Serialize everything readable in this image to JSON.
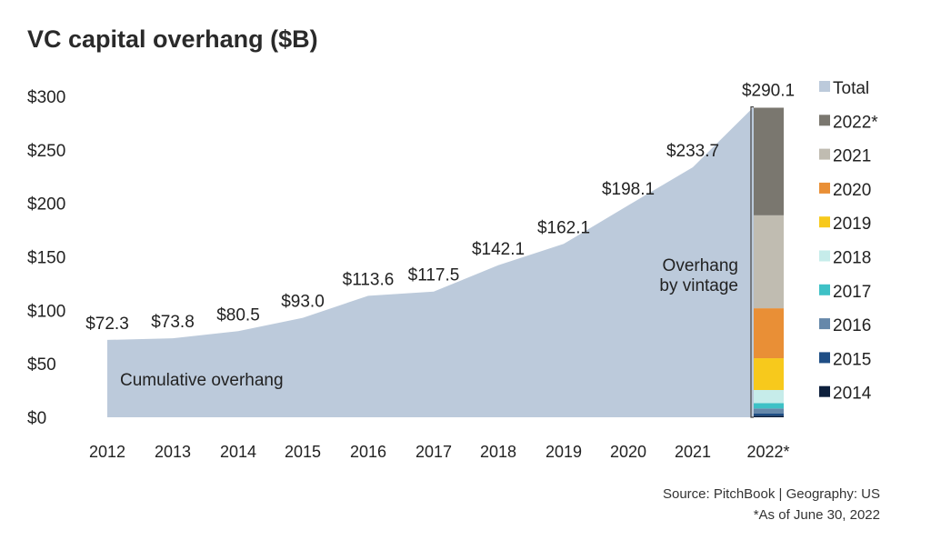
{
  "chart_data": {
    "type": "area",
    "title": "VC capital overhang ($B)",
    "categories": [
      "2012",
      "2013",
      "2014",
      "2015",
      "2016",
      "2017",
      "2018",
      "2019",
      "2020",
      "2021",
      "2022*"
    ],
    "series": [
      {
        "name": "Total",
        "values": [
          72.3,
          73.8,
          80.5,
          93.0,
          113.6,
          117.5,
          142.1,
          162.1,
          198.1,
          233.7,
          290.1
        ],
        "color": "#bccadb"
      }
    ],
    "data_labels": [
      "$72.3",
      "$73.8",
      "$80.5",
      "$93.0",
      "$113.6",
      "$117.5",
      "$142.1",
      "$162.1",
      "$198.1",
      "$233.7",
      "$290.1"
    ],
    "area_annotation": "Cumulative overhang",
    "stacked_bar": {
      "category": "2022*",
      "annotation_line1": "Overhang",
      "annotation_line2": "by vintage",
      "segments": [
        {
          "name": "2014",
          "value": 1.4,
          "color": "#0d1f3c"
        },
        {
          "name": "2015",
          "value": 2.0,
          "color": "#1f4e85"
        },
        {
          "name": "2016",
          "value": 4.8,
          "color": "#6688aa"
        },
        {
          "name": "2017",
          "value": 5.1,
          "color": "#3ec1c6"
        },
        {
          "name": "2018",
          "value": 12.2,
          "color": "#c6ecea"
        },
        {
          "name": "2019",
          "value": 29.7,
          "color": "#f7c91c"
        },
        {
          "name": "2020",
          "value": 46.7,
          "color": "#e98f36"
        },
        {
          "name": "2021",
          "value": 86.9,
          "color": "#c0bcb1"
        },
        {
          "name": "2022*",
          "value": 100.6,
          "color": "#7a776f"
        }
      ]
    },
    "legend": [
      "Total",
      "2022*",
      "2021",
      "2020",
      "2019",
      "2018",
      "2017",
      "2016",
      "2015",
      "2014"
    ],
    "legend_position": "right",
    "ylim": [
      0,
      300
    ],
    "yticks": [
      "$0",
      "$50",
      "$100",
      "$150",
      "$200",
      "$250",
      "$300"
    ],
    "ytick_values": [
      0,
      50,
      100,
      150,
      200,
      250,
      300
    ],
    "grid": false,
    "xlabel": "",
    "ylabel": ""
  },
  "footer": {
    "source": "Source: PitchBook  |  Geography: US",
    "note": "*As of June 30, 2022"
  }
}
